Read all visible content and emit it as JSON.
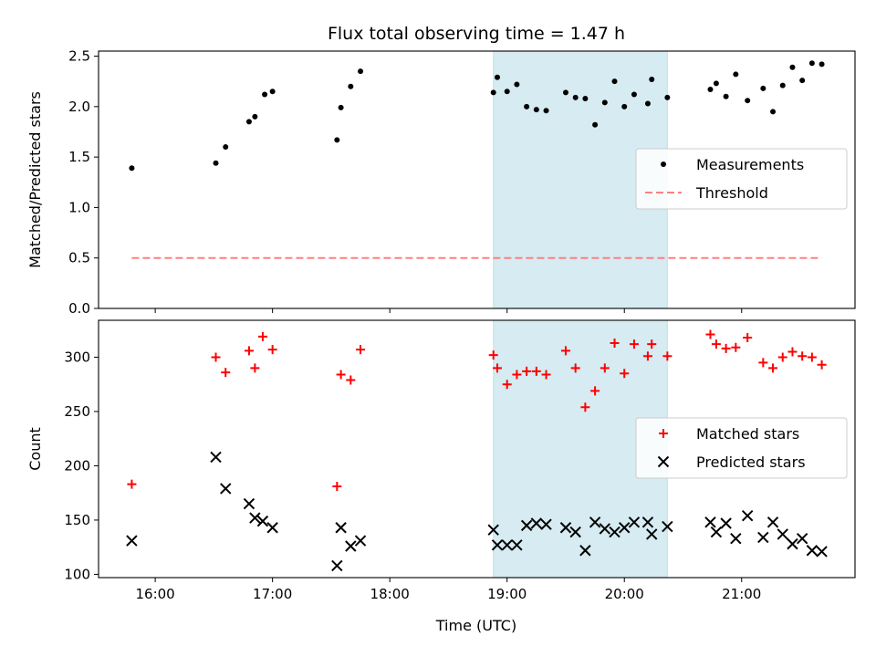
{
  "figure": {
    "title": "Flux total observing time = 1.47 h",
    "xlabel": "Time (UTC)"
  },
  "chart_data": [
    {
      "type": "scatter",
      "ylabel": "Matched/Predicted stars",
      "xlim": [
        "15:31",
        "21:58"
      ],
      "ylim": [
        0,
        2.55
      ],
      "yticks": [
        0.0,
        0.5,
        1.0,
        1.5,
        2.0,
        2.5
      ],
      "ytick_labels": [
        "0.0",
        "0.5",
        "1.0",
        "1.5",
        "2.0",
        "2.5"
      ],
      "shaded_region": {
        "start": "18:53",
        "end": "20:22",
        "color": "#add8e6"
      },
      "legend_position": "center-right",
      "series": [
        {
          "name": "Measurements",
          "marker": "dot",
          "color": "#000000",
          "x": [
            "15:48",
            "16:31",
            "16:36",
            "16:48",
            "16:51",
            "16:56",
            "17:00",
            "17:33",
            "17:35",
            "17:40",
            "17:45",
            "18:53",
            "18:55",
            "19:00",
            "19:05",
            "19:10",
            "19:15",
            "19:20",
            "19:30",
            "19:35",
            "19:40",
            "19:45",
            "19:50",
            "19:55",
            "20:00",
            "20:05",
            "20:12",
            "20:14",
            "20:22",
            "20:44",
            "20:47",
            "20:52",
            "20:57",
            "21:03",
            "21:11",
            "21:16",
            "21:21",
            "21:26",
            "21:31",
            "21:36",
            "21:41"
          ],
          "y": [
            1.39,
            1.44,
            1.6,
            1.85,
            1.9,
            2.12,
            2.15,
            1.67,
            1.99,
            2.2,
            2.35,
            2.14,
            2.29,
            2.15,
            2.22,
            2.0,
            1.97,
            1.96,
            2.14,
            2.09,
            2.08,
            1.82,
            2.04,
            2.25,
            2.0,
            2.12,
            2.03,
            2.27,
            2.09,
            2.17,
            2.23,
            2.1,
            2.32,
            2.06,
            2.18,
            1.95,
            2.21,
            2.39,
            2.26,
            2.43,
            2.42
          ]
        },
        {
          "name": "Threshold",
          "line": "dashed",
          "color": "#ff8080",
          "x": [
            "15:48",
            "21:41"
          ],
          "y": [
            0.5,
            0.5
          ]
        }
      ]
    },
    {
      "type": "scatter",
      "ylabel": "Count",
      "xlim": [
        "15:31",
        "21:58"
      ],
      "ylim": [
        97,
        334
      ],
      "yticks": [
        100,
        150,
        200,
        250,
        300
      ],
      "ytick_labels": [
        "100",
        "150",
        "200",
        "250",
        "300"
      ],
      "xtick_labels": [
        "16:00",
        "17:00",
        "18:00",
        "19:00",
        "20:00",
        "21:00"
      ],
      "shaded_region": {
        "start": "18:53",
        "end": "20:22",
        "color": "#add8e6"
      },
      "legend_position": "center-right",
      "series": [
        {
          "name": "Matched stars",
          "marker": "plus",
          "color": "#ff0000",
          "x": [
            "15:48",
            "16:31",
            "16:36",
            "16:48",
            "16:51",
            "16:55",
            "17:00",
            "17:33",
            "17:35",
            "17:40",
            "17:45",
            "18:53",
            "18:55",
            "19:00",
            "19:05",
            "19:10",
            "19:15",
            "19:20",
            "19:30",
            "19:35",
            "19:40",
            "19:45",
            "19:50",
            "19:55",
            "20:00",
            "20:05",
            "20:12",
            "20:14",
            "20:22",
            "20:44",
            "20:47",
            "20:52",
            "20:57",
            "21:03",
            "21:11",
            "21:16",
            "21:21",
            "21:26",
            "21:31",
            "21:36",
            "21:41"
          ],
          "y": [
            183,
            300,
            286,
            306,
            290,
            319,
            307,
            181,
            284,
            279,
            307,
            302,
            290,
            275,
            284,
            287,
            287,
            284,
            306,
            290,
            254,
            269,
            290,
            313,
            285,
            312,
            301,
            312,
            301,
            321,
            312,
            308,
            309,
            318,
            295,
            290,
            300,
            305,
            301,
            300,
            293
          ]
        },
        {
          "name": "Predicted stars",
          "marker": "x",
          "color": "#000000",
          "x": [
            "15:48",
            "16:31",
            "16:36",
            "16:48",
            "16:51",
            "16:55",
            "17:00",
            "17:33",
            "17:35",
            "17:40",
            "17:45",
            "18:53",
            "18:55",
            "19:00",
            "19:05",
            "19:10",
            "19:15",
            "19:20",
            "19:30",
            "19:35",
            "19:40",
            "19:45",
            "19:50",
            "19:55",
            "20:00",
            "20:05",
            "20:12",
            "20:14",
            "20:22",
            "20:44",
            "20:47",
            "20:52",
            "20:57",
            "21:03",
            "21:11",
            "21:16",
            "21:21",
            "21:26",
            "21:31",
            "21:36",
            "21:41"
          ],
          "y": [
            131,
            208,
            179,
            165,
            152,
            149,
            143,
            108,
            143,
            126,
            131,
            141,
            127,
            127,
            127,
            145,
            147,
            146,
            143,
            139,
            122,
            148,
            142,
            139,
            143,
            148,
            148,
            137,
            144,
            148,
            139,
            147,
            133,
            154,
            134,
            148,
            137,
            128,
            133,
            122,
            121
          ]
        }
      ]
    }
  ]
}
